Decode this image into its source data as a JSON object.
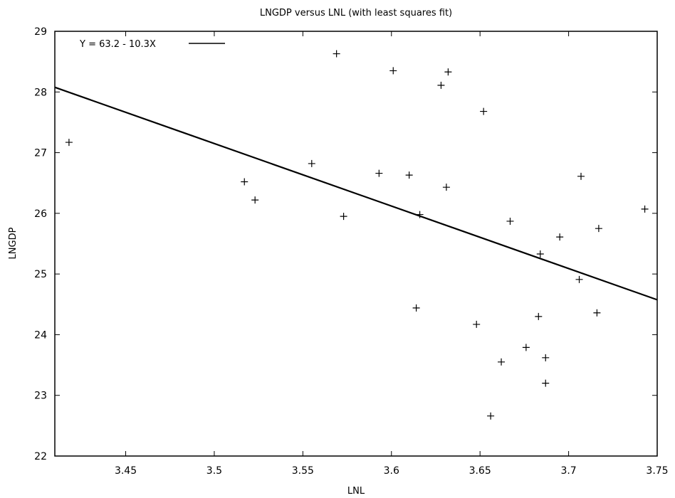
{
  "chart_data": {
    "type": "scatter",
    "title": "LNGDP versus LNL (with least squares fit)",
    "xlabel": "LNL",
    "ylabel": "LNGDP",
    "xlim": [
      3.41,
      3.75
    ],
    "ylim": [
      22,
      29
    ],
    "xticks": [
      3.45,
      3.5,
      3.55,
      3.6,
      3.65,
      3.7,
      3.75
    ],
    "xtick_labels": [
      "3.45",
      "3.5",
      "3.55",
      "3.6",
      "3.65",
      "3.7",
      "3.75"
    ],
    "yticks": [
      22,
      23,
      24,
      25,
      26,
      27,
      28,
      29
    ],
    "ytick_labels": [
      "22",
      "23",
      "24",
      "25",
      "26",
      "27",
      "28",
      "29"
    ],
    "grid": false,
    "legend_position": "top-left",
    "series": [
      {
        "name": "",
        "marker": "plus",
        "points": [
          [
            3.418,
            27.17
          ],
          [
            3.517,
            26.52
          ],
          [
            3.523,
            26.22
          ],
          [
            3.555,
            26.82
          ],
          [
            3.569,
            28.63
          ],
          [
            3.573,
            25.95
          ],
          [
            3.593,
            26.66
          ],
          [
            3.601,
            28.35
          ],
          [
            3.61,
            26.63
          ],
          [
            3.614,
            24.44
          ],
          [
            3.616,
            25.98
          ],
          [
            3.628,
            28.11
          ],
          [
            3.631,
            26.43
          ],
          [
            3.632,
            28.33
          ],
          [
            3.648,
            24.17
          ],
          [
            3.652,
            27.68
          ],
          [
            3.656,
            22.66
          ],
          [
            3.662,
            23.55
          ],
          [
            3.667,
            25.87
          ],
          [
            3.676,
            23.79
          ],
          [
            3.683,
            24.3
          ],
          [
            3.684,
            25.33
          ],
          [
            3.687,
            23.62
          ],
          [
            3.687,
            23.2
          ],
          [
            3.695,
            25.61
          ],
          [
            3.706,
            24.91
          ],
          [
            3.707,
            26.61
          ],
          [
            3.716,
            24.36
          ],
          [
            3.717,
            25.75
          ],
          [
            3.743,
            26.07
          ]
        ]
      },
      {
        "name": "Y = 63.2 - 10.3X",
        "type": "line",
        "intercept": 63.2,
        "slope": -10.3
      }
    ]
  }
}
